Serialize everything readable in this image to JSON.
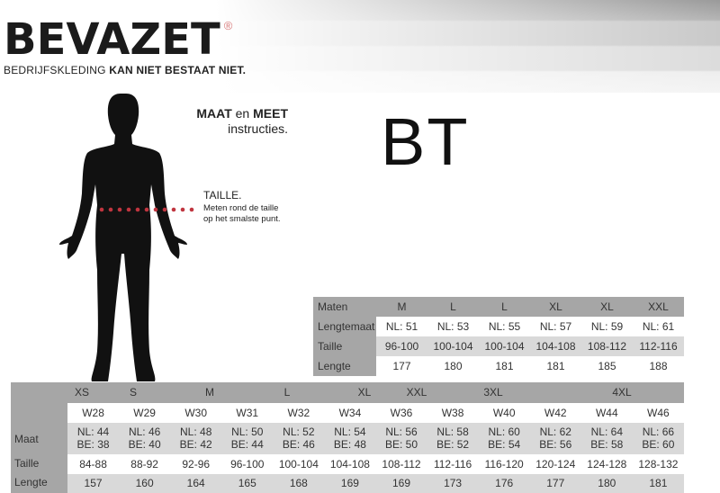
{
  "brand": {
    "logo": "BEVAZET",
    "registered": "®",
    "tagline_regular": "BEDRIJFSKLEDING",
    "tagline_bold": "KAN NIET BESTAAT NIET."
  },
  "instructions": {
    "title_bold1": "MAAT",
    "title_mid": " en ",
    "title_bold2": "MEET",
    "subtitle": "instructies.",
    "taille_title": "TAILLE.",
    "taille_desc1": "Meten rond de taille",
    "taille_desc2": "op het smalste punt."
  },
  "colors": {
    "dots": "#c0353f",
    "table_dark": "#a6a6a6",
    "table_light": "#d9d9d9"
  },
  "product_code": "BT",
  "table_long": {
    "rows": [
      {
        "label": "Maten",
        "values": [
          "M",
          "L",
          "L",
          "XL",
          "XL",
          "XXL"
        ]
      },
      {
        "label": "Lengtemaat",
        "values": [
          "NL: 51",
          "NL: 53",
          "NL: 55",
          "NL: 57",
          "NL: 59",
          "NL: 61"
        ]
      },
      {
        "label": "Taille",
        "values": [
          "96-100",
          "100-104",
          "100-104",
          "104-108",
          "108-112",
          "112-116"
        ]
      },
      {
        "label": "Lengte",
        "values": [
          "177",
          "180",
          "181",
          "181",
          "185",
          "188"
        ]
      }
    ]
  },
  "table_main": {
    "sizes": [
      "XS",
      "S",
      "M",
      "L",
      "XL",
      "XXL",
      "3XL",
      "4XL"
    ],
    "w_sizes": [
      "W28",
      "W29",
      "W30",
      "W31",
      "W32",
      "W34",
      "W36",
      "W38",
      "W40",
      "W42",
      "W44",
      "W46"
    ],
    "maat_label": "Maat",
    "nl": [
      "NL: 44",
      "NL: 46",
      "NL: 48",
      "NL: 50",
      "NL: 52",
      "NL: 54",
      "NL: 56",
      "NL: 58",
      "NL: 60",
      "NL: 62",
      "NL: 64",
      "NL: 66"
    ],
    "be": [
      "BE: 38",
      "BE: 40",
      "BE: 42",
      "BE: 44",
      "BE: 46",
      "BE: 48",
      "BE: 50",
      "BE: 52",
      "BE: 54",
      "BE: 56",
      "BE: 58",
      "BE: 60"
    ],
    "taille_label": "Taille",
    "taille": [
      "84-88",
      "88-92",
      "92-96",
      "96-100",
      "100-104",
      "104-108",
      "108-112",
      "112-116",
      "116-120",
      "120-124",
      "124-128",
      "128-132"
    ],
    "lengte_label": "Lengte",
    "lengte": [
      "157",
      "160",
      "164",
      "165",
      "168",
      "169",
      "169",
      "173",
      "176",
      "177",
      "180",
      "181"
    ]
  }
}
